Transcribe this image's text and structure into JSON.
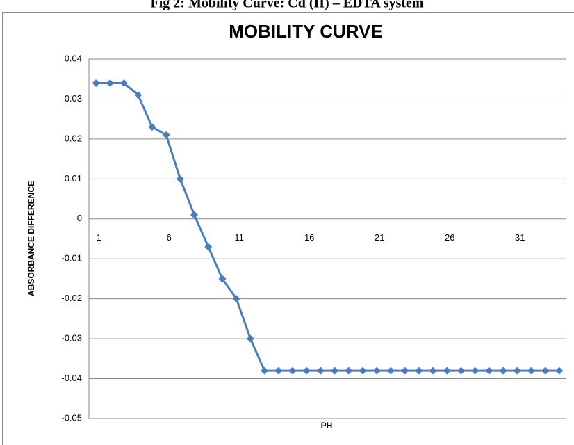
{
  "caption": "Fig 2: Mobility Curve: Cd (II) – EDTA system",
  "chart_data": {
    "type": "line",
    "title": "MOBILITY CURVE",
    "x_label": "PH",
    "y_label": "ABSORBANCE DIFFERENCE",
    "x": [
      1,
      2,
      3,
      4,
      5,
      6,
      7,
      8,
      9,
      10,
      11,
      12,
      13,
      14,
      15,
      16,
      17,
      18,
      19,
      20,
      21,
      22,
      23,
      24,
      25,
      26,
      27,
      28,
      29,
      30,
      31,
      32,
      33,
      34
    ],
    "series": [
      {
        "color": "#4a7ebb",
        "values": [
          0.034,
          0.034,
          0.034,
          0.031,
          0.023,
          0.021,
          0.01,
          0.001,
          -0.007,
          -0.015,
          -0.02,
          -0.03,
          -0.038,
          -0.038,
          -0.038,
          -0.038,
          -0.038,
          -0.038,
          -0.038,
          -0.038,
          -0.038,
          -0.038,
          -0.038,
          -0.038,
          -0.038,
          -0.038,
          -0.038,
          -0.038,
          -0.038,
          -0.038,
          -0.038,
          -0.038,
          -0.038,
          -0.038
        ]
      }
    ],
    "xlim": [
      0.5,
      34.5
    ],
    "xticks": [
      1,
      6,
      11,
      16,
      21,
      26,
      31
    ],
    "ylim": [
      -0.05,
      0.04
    ],
    "yticks": [
      0.04,
      0.03,
      0.02,
      0.01,
      0,
      -0.01,
      -0.02,
      -0.03,
      -0.04,
      -0.05
    ],
    "grid": true,
    "marker": "diamond"
  }
}
